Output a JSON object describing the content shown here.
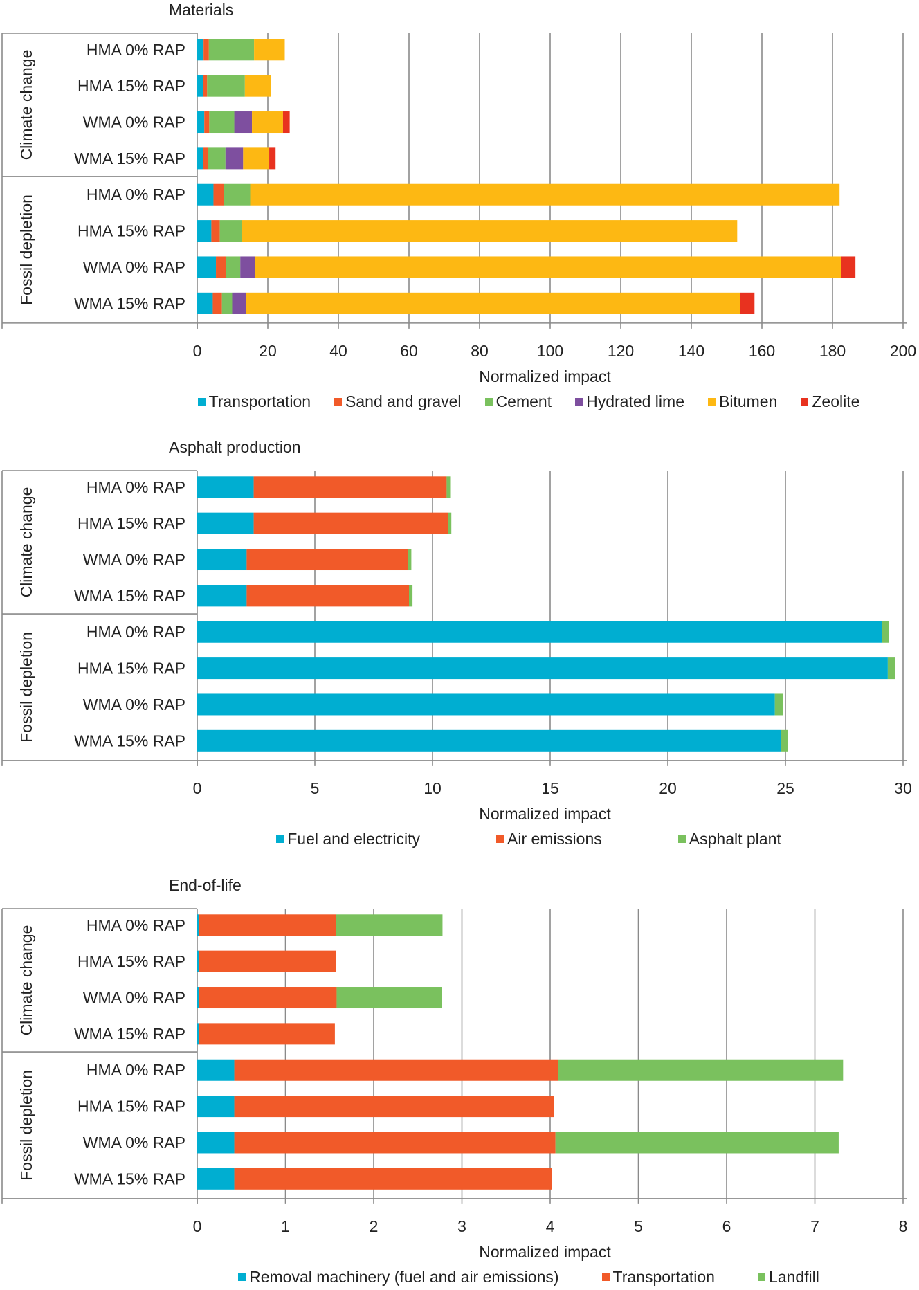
{
  "chart_data": [
    {
      "type": "bar",
      "orientation": "horizontal",
      "stacked": true,
      "title": "Materials",
      "xlabel": "Normalized impact",
      "xlim": [
        0,
        200
      ],
      "xticks": [
        0,
        20,
        40,
        60,
        80,
        100,
        120,
        140,
        160,
        180,
        200
      ],
      "grid": true,
      "legend_position": "bottom",
      "groups": [
        {
          "label": "Climate change",
          "categories": [
            "HMA 0% RAP",
            "HMA 15% RAP",
            "WMA 0% RAP",
            "WMA 15% RAP"
          ]
        },
        {
          "label": "Fossil depletion",
          "categories": [
            "HMA 0% RAP",
            "HMA 15% RAP",
            "WMA 0% RAP",
            "WMA 15% RAP"
          ]
        }
      ],
      "series": [
        {
          "name": "Transportation",
          "color": "#00aed1",
          "values": [
            1.8,
            1.6,
            2.0,
            1.6,
            4.6,
            4.0,
            5.3,
            4.4
          ]
        },
        {
          "name": "Sand and gravel",
          "color": "#f15a29",
          "values": [
            1.5,
            1.2,
            1.4,
            1.4,
            3.0,
            2.4,
            2.9,
            2.6
          ]
        },
        {
          "name": "Cement",
          "color": "#7ac15e",
          "values": [
            12.8,
            10.7,
            7.1,
            5.0,
            7.4,
            6.2,
            4.0,
            2.9
          ]
        },
        {
          "name": "Hydrated lime",
          "color": "#7e4f9f",
          "values": [
            0,
            0,
            5.0,
            5.0,
            0,
            0,
            4.2,
            4.0
          ]
        },
        {
          "name": "Bitumen",
          "color": "#fdb813",
          "values": [
            8.7,
            7.4,
            8.8,
            7.4,
            167.0,
            140.4,
            166.1,
            140.0
          ]
        },
        {
          "name": "Zeolite",
          "color": "#e8321f",
          "values": [
            0,
            0,
            1.9,
            1.8,
            0,
            0,
            4.0,
            4.0
          ]
        }
      ]
    },
    {
      "type": "bar",
      "orientation": "horizontal",
      "stacked": true,
      "title": "Asphalt production",
      "xlabel": "Normalized impact",
      "xlim": [
        0,
        30
      ],
      "xticks": [
        0,
        5,
        10,
        15,
        20,
        25,
        30
      ],
      "grid": true,
      "legend_position": "bottom",
      "groups": [
        {
          "label": "Climate change",
          "categories": [
            "HMA 0% RAP",
            "HMA 15% RAP",
            "WMA 0% RAP",
            "WMA 15% RAP"
          ]
        },
        {
          "label": "Fossil depletion",
          "categories": [
            "HMA 0% RAP",
            "HMA 15% RAP",
            "WMA 0% RAP",
            "WMA 15% RAP"
          ]
        }
      ],
      "series": [
        {
          "name": "Fuel and electricity",
          "color": "#00aed1",
          "values": [
            2.4,
            2.4,
            2.1,
            2.1,
            29.1,
            29.35,
            24.55,
            24.8
          ]
        },
        {
          "name": "Air emissions",
          "color": "#f15a29",
          "values": [
            8.2,
            8.25,
            6.85,
            6.9,
            0,
            0,
            0,
            0
          ]
        },
        {
          "name": "Asphalt plant",
          "color": "#7ac15e",
          "values": [
            0.15,
            0.15,
            0.15,
            0.15,
            0.3,
            0.3,
            0.35,
            0.3
          ]
        }
      ]
    },
    {
      "type": "bar",
      "orientation": "horizontal",
      "stacked": true,
      "title": "End-of-life",
      "xlabel": "Normalized impact",
      "xlim": [
        0,
        8
      ],
      "xticks": [
        0,
        1,
        2,
        3,
        4,
        5,
        6,
        7,
        8
      ],
      "grid": true,
      "legend_position": "bottom",
      "groups": [
        {
          "label": "Climate change",
          "categories": [
            "HMA 0% RAP",
            "HMA 15% RAP",
            "WMA 0% RAP",
            "WMA 15% RAP"
          ]
        },
        {
          "label": "Fossil depletion",
          "categories": [
            "HMA 0% RAP",
            "HMA 15% RAP",
            "WMA 0% RAP",
            "WMA 15% RAP"
          ]
        }
      ],
      "series": [
        {
          "name": "Removal machinery (fuel and air emissions)",
          "color": "#00aed1",
          "values": [
            0.02,
            0.02,
            0.02,
            0.02,
            0.42,
            0.42,
            0.42,
            0.42
          ]
        },
        {
          "name": "Transportation",
          "color": "#f15a29",
          "values": [
            1.55,
            1.55,
            1.56,
            1.54,
            3.67,
            3.62,
            3.64,
            3.6
          ]
        },
        {
          "name": "Landfill",
          "color": "#7ac15e",
          "values": [
            1.21,
            0,
            1.19,
            0,
            3.23,
            0,
            3.21,
            0
          ]
        }
      ]
    }
  ]
}
